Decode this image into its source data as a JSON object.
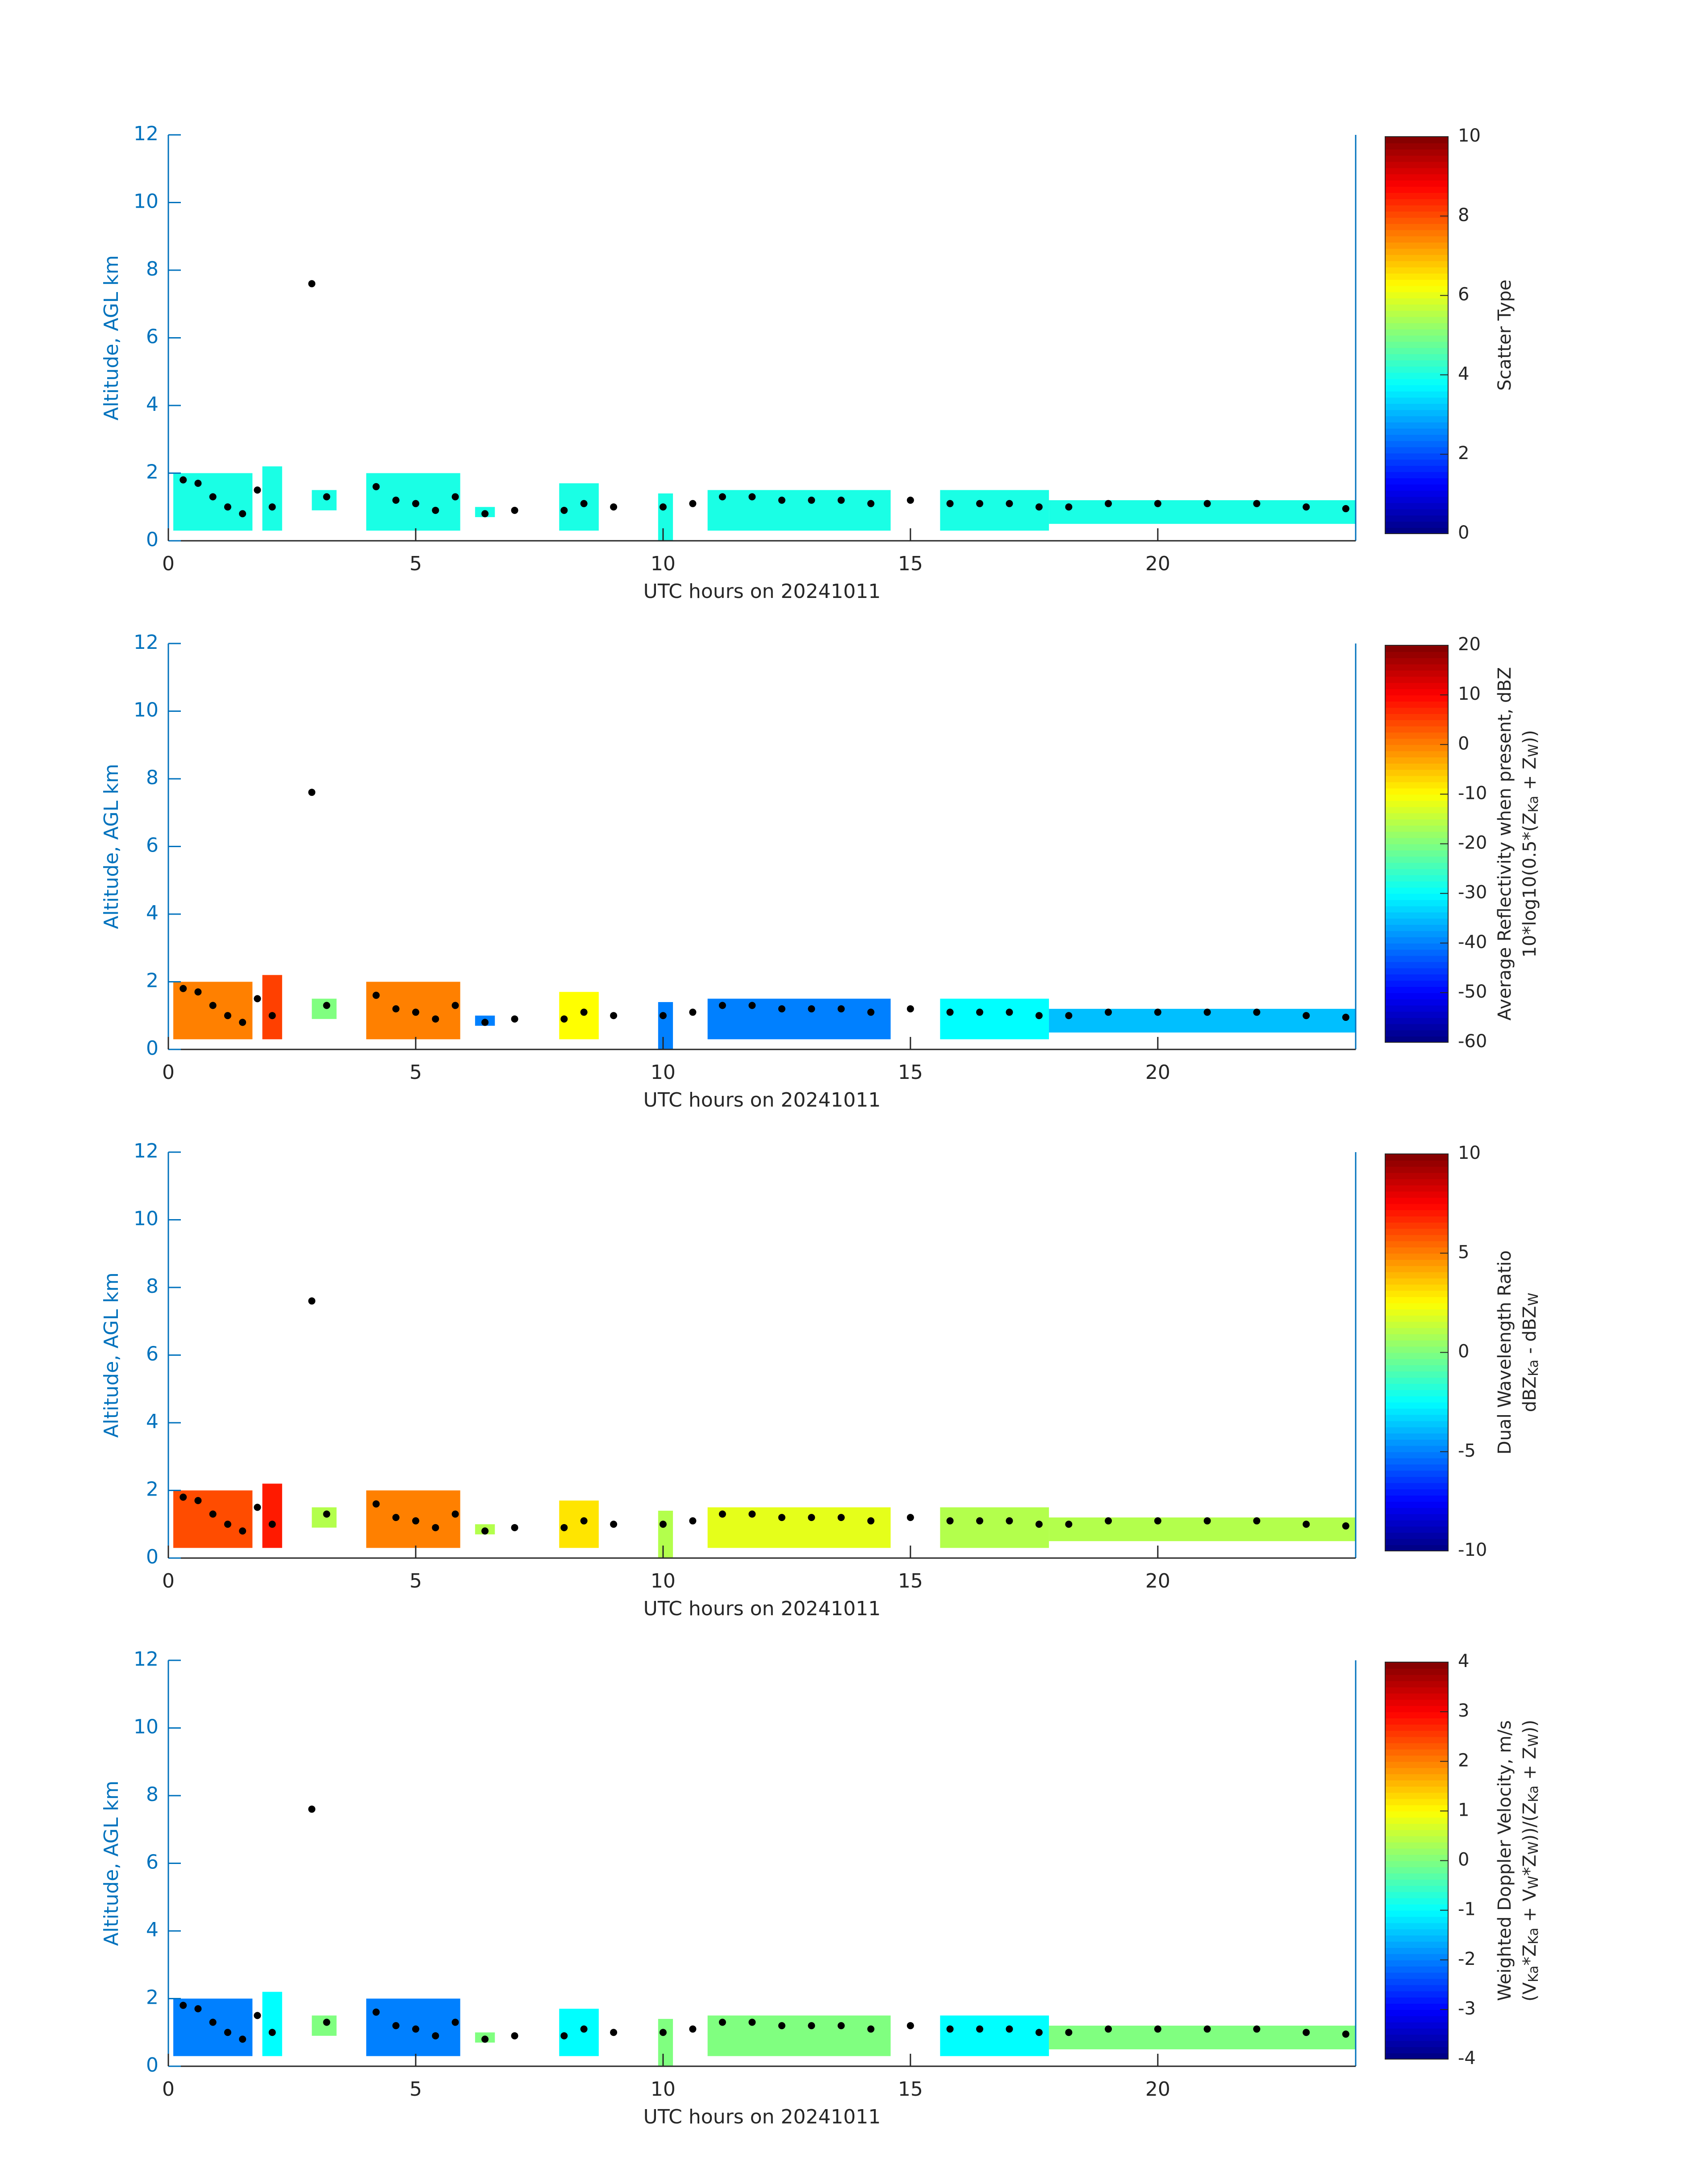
{
  "chart_data": [
    {
      "type": "heatmap",
      "xlabel": "UTC hours on 20241011",
      "ylabel": "Altitude, AGL km",
      "xlim": [
        0,
        24
      ],
      "ylim": [
        0,
        12
      ],
      "xticks": [
        0,
        5,
        10,
        15,
        20
      ],
      "yticks": [
        0,
        2,
        4,
        6,
        8,
        10,
        12
      ],
      "colormap": "jet",
      "colorbar": {
        "lim": [
          0,
          10
        ],
        "ticks": [
          0,
          2,
          4,
          6,
          8,
          10
        ],
        "label": [
          [
            "Scatter Type"
          ]
        ]
      },
      "blocks": {
        "x_start": [
          0.1,
          1.9,
          2.9,
          4.0,
          6.2,
          7.9,
          9.9,
          10.9,
          15.6,
          17.8
        ],
        "x_end": [
          1.7,
          2.3,
          3.4,
          5.9,
          6.6,
          8.7,
          10.2,
          14.6,
          17.8,
          24.0
        ],
        "bottom": [
          0.3,
          0.3,
          0.9,
          0.3,
          0.7,
          0.3,
          0.0,
          0.3,
          0.3,
          0.5
        ],
        "top": [
          2.0,
          2.2,
          1.5,
          2.0,
          1.0,
          1.7,
          1.4,
          1.5,
          1.5,
          1.2
        ],
        "values": [
          4,
          4,
          4,
          4,
          4,
          4,
          4,
          4,
          4,
          4
        ]
      },
      "cloud_base": {
        "color": "#000000",
        "x": [
          0.3,
          0.6,
          0.9,
          1.2,
          1.5,
          1.8,
          2.1,
          2.9,
          3.2,
          4.2,
          4.6,
          5.0,
          5.4,
          5.8,
          6.4,
          7.0,
          8.0,
          8.4,
          9.0,
          10.0,
          10.6,
          11.2,
          11.8,
          12.4,
          13.0,
          13.6,
          14.2,
          15.0,
          15.8,
          16.4,
          17.0,
          17.6,
          18.2,
          19.0,
          20.0,
          21.0,
          22.0,
          23.0,
          23.8
        ],
        "y": [
          1.8,
          1.7,
          1.3,
          1.0,
          0.8,
          1.5,
          1.0,
          7.6,
          1.3,
          1.6,
          1.2,
          1.1,
          0.9,
          1.3,
          0.8,
          0.9,
          0.9,
          1.1,
          1.0,
          1.0,
          1.1,
          1.3,
          1.3,
          1.2,
          1.2,
          1.2,
          1.1,
          1.2,
          1.1,
          1.1,
          1.1,
          1.0,
          1.0,
          1.1,
          1.1,
          1.1,
          1.1,
          1.0,
          0.95
        ]
      }
    },
    {
      "type": "heatmap",
      "xlabel": "UTC hours on 20241011",
      "ylabel": "Altitude, AGL km",
      "xlim": [
        0,
        24
      ],
      "ylim": [
        0,
        12
      ],
      "xticks": [
        0,
        5,
        10,
        15,
        20
      ],
      "yticks": [
        0,
        2,
        4,
        6,
        8,
        10,
        12
      ],
      "colormap": "jet",
      "colorbar": {
        "lim": [
          -60,
          20
        ],
        "ticks": [
          -60,
          -50,
          -40,
          -30,
          -20,
          -10,
          0,
          10,
          20
        ],
        "label": [
          [
            "Average Reflectivity when present, dBZ"
          ],
          [
            "10*log10(0.5*(Z",
            "Ka",
            " + Z",
            "W",
            "))"
          ]
        ]
      },
      "blocks": {
        "x_start": [
          0.1,
          1.9,
          2.9,
          4.0,
          6.2,
          7.9,
          9.9,
          10.9,
          15.6,
          17.8
        ],
        "x_end": [
          1.7,
          2.3,
          3.4,
          5.9,
          6.6,
          8.7,
          10.2,
          14.6,
          17.8,
          24.0
        ],
        "bottom": [
          0.3,
          0.3,
          0.9,
          0.3,
          0.7,
          0.3,
          0.0,
          0.3,
          0.3,
          0.5
        ],
        "top": [
          2.0,
          2.2,
          1.5,
          2.0,
          1.0,
          1.7,
          1.4,
          1.5,
          1.5,
          1.2
        ],
        "values": [
          0,
          5,
          -20,
          0,
          -40,
          -10,
          -40,
          -40,
          -30,
          -35
        ]
      },
      "cloud_base": {
        "color": "#000000",
        "x": [
          0.3,
          0.6,
          0.9,
          1.2,
          1.5,
          1.8,
          2.1,
          2.9,
          3.2,
          4.2,
          4.6,
          5.0,
          5.4,
          5.8,
          6.4,
          7.0,
          8.0,
          8.4,
          9.0,
          10.0,
          10.6,
          11.2,
          11.8,
          12.4,
          13.0,
          13.6,
          14.2,
          15.0,
          15.8,
          16.4,
          17.0,
          17.6,
          18.2,
          19.0,
          20.0,
          21.0,
          22.0,
          23.0,
          23.8
        ],
        "y": [
          1.8,
          1.7,
          1.3,
          1.0,
          0.8,
          1.5,
          1.0,
          7.6,
          1.3,
          1.6,
          1.2,
          1.1,
          0.9,
          1.3,
          0.8,
          0.9,
          0.9,
          1.1,
          1.0,
          1.0,
          1.1,
          1.3,
          1.3,
          1.2,
          1.2,
          1.2,
          1.1,
          1.2,
          1.1,
          1.1,
          1.1,
          1.0,
          1.0,
          1.1,
          1.1,
          1.1,
          1.1,
          1.0,
          0.95
        ]
      }
    },
    {
      "type": "heatmap",
      "xlabel": "UTC hours on 20241011",
      "ylabel": "Altitude, AGL km",
      "xlim": [
        0,
        24
      ],
      "ylim": [
        0,
        12
      ],
      "xticks": [
        0,
        5,
        10,
        15,
        20
      ],
      "yticks": [
        0,
        2,
        4,
        6,
        8,
        10,
        12
      ],
      "colormap": "jet",
      "colorbar": {
        "lim": [
          -10,
          10
        ],
        "ticks": [
          -10,
          -5,
          0,
          5,
          10
        ],
        "label": [
          [
            "Dual Wavelength Ratio"
          ],
          [
            "dBZ",
            "Ka",
            " - dBZ",
            "W"
          ]
        ]
      },
      "blocks": {
        "x_start": [
          0.1,
          1.9,
          2.9,
          4.0,
          6.2,
          7.9,
          9.9,
          10.9,
          15.6,
          17.8
        ],
        "x_end": [
          1.7,
          2.3,
          3.4,
          5.9,
          6.6,
          8.7,
          10.2,
          14.6,
          17.8,
          24.0
        ],
        "bottom": [
          0.3,
          0.3,
          0.9,
          0.3,
          0.7,
          0.3,
          0.0,
          0.3,
          0.3,
          0.5
        ],
        "top": [
          2.0,
          2.2,
          1.5,
          2.0,
          1.0,
          1.7,
          1.4,
          1.5,
          1.5,
          1.2
        ],
        "values": [
          6,
          7,
          1,
          5,
          1,
          3,
          1,
          2,
          1,
          1
        ]
      },
      "cloud_base": {
        "color": "#000000",
        "x": [
          0.3,
          0.6,
          0.9,
          1.2,
          1.5,
          1.8,
          2.1,
          2.9,
          3.2,
          4.2,
          4.6,
          5.0,
          5.4,
          5.8,
          6.4,
          7.0,
          8.0,
          8.4,
          9.0,
          10.0,
          10.6,
          11.2,
          11.8,
          12.4,
          13.0,
          13.6,
          14.2,
          15.0,
          15.8,
          16.4,
          17.0,
          17.6,
          18.2,
          19.0,
          20.0,
          21.0,
          22.0,
          23.0,
          23.8
        ],
        "y": [
          1.8,
          1.7,
          1.3,
          1.0,
          0.8,
          1.5,
          1.0,
          7.6,
          1.3,
          1.6,
          1.2,
          1.1,
          0.9,
          1.3,
          0.8,
          0.9,
          0.9,
          1.1,
          1.0,
          1.0,
          1.1,
          1.3,
          1.3,
          1.2,
          1.2,
          1.2,
          1.1,
          1.2,
          1.1,
          1.1,
          1.1,
          1.0,
          1.0,
          1.1,
          1.1,
          1.1,
          1.1,
          1.0,
          0.95
        ]
      }
    },
    {
      "type": "heatmap",
      "xlabel": "UTC hours on 20241011",
      "ylabel": "Altitude, AGL km",
      "xlim": [
        0,
        24
      ],
      "ylim": [
        0,
        12
      ],
      "xticks": [
        0,
        5,
        10,
        15,
        20
      ],
      "yticks": [
        0,
        2,
        4,
        6,
        8,
        10,
        12
      ],
      "colormap": "jet",
      "colorbar": {
        "lim": [
          -4,
          4
        ],
        "ticks": [
          -4,
          -3,
          -2,
          -1,
          0,
          1,
          2,
          3,
          4
        ],
        "label": [
          [
            "Weighted Doppler Velocity, m/s"
          ],
          [
            "(V",
            "Ka",
            "*Z",
            "Ka",
            " + V",
            "W",
            "*Z",
            "W",
            "))/(Z",
            "Ka",
            " + Z",
            "W",
            "))"
          ]
        ]
      },
      "blocks": {
        "x_start": [
          0.1,
          1.9,
          2.9,
          4.0,
          6.2,
          7.9,
          9.9,
          10.9,
          15.6,
          17.8
        ],
        "x_end": [
          1.7,
          2.3,
          3.4,
          5.9,
          6.6,
          8.7,
          10.2,
          14.6,
          17.8,
          24.0
        ],
        "bottom": [
          0.3,
          0.3,
          0.9,
          0.3,
          0.7,
          0.3,
          0.0,
          0.3,
          0.3,
          0.5
        ],
        "top": [
          2.0,
          2.2,
          1.5,
          2.0,
          1.0,
          1.7,
          1.4,
          1.5,
          1.5,
          1.2
        ],
        "values": [
          -2,
          -1,
          0,
          -2,
          0,
          -1,
          0,
          0,
          -1,
          0
        ]
      },
      "cloud_base": {
        "color": "#000000",
        "x": [
          0.3,
          0.6,
          0.9,
          1.2,
          1.5,
          1.8,
          2.1,
          2.9,
          3.2,
          4.2,
          4.6,
          5.0,
          5.4,
          5.8,
          6.4,
          7.0,
          8.0,
          8.4,
          9.0,
          10.0,
          10.6,
          11.2,
          11.8,
          12.4,
          13.0,
          13.6,
          14.2,
          15.0,
          15.8,
          16.4,
          17.0,
          17.6,
          18.2,
          19.0,
          20.0,
          21.0,
          22.0,
          23.0,
          23.8
        ],
        "y": [
          1.8,
          1.7,
          1.3,
          1.0,
          0.8,
          1.5,
          1.0,
          7.6,
          1.3,
          1.6,
          1.2,
          1.1,
          0.9,
          1.3,
          0.8,
          0.9,
          0.9,
          1.1,
          1.0,
          1.0,
          1.1,
          1.3,
          1.3,
          1.2,
          1.2,
          1.2,
          1.1,
          1.2,
          1.1,
          1.1,
          1.1,
          1.0,
          1.0,
          1.1,
          1.1,
          1.1,
          1.1,
          1.0,
          0.95
        ]
      }
    }
  ]
}
